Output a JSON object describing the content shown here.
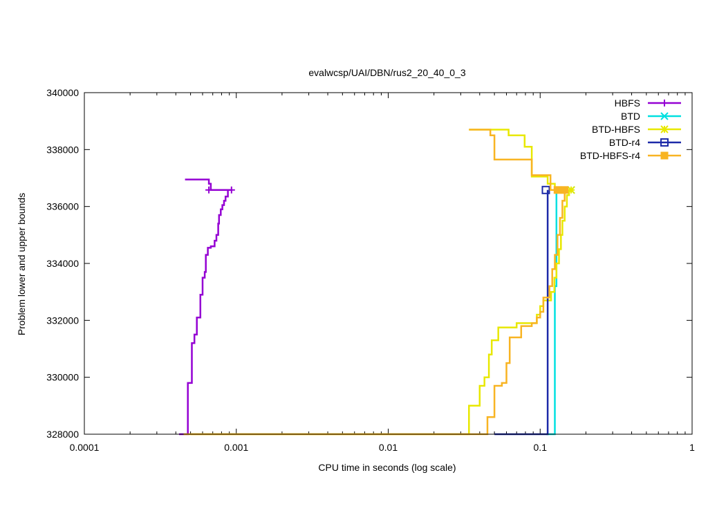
{
  "chart_data": {
    "type": "line",
    "title": "evalwcsp/UAI/DBN/rus2_20_40_0_3",
    "xlabel": "CPU time in seconds (log scale)",
    "ylabel": "Problem lower and upper bounds",
    "x_scale": "log",
    "xlim": [
      0.0001,
      1
    ],
    "ylim": [
      328000,
      340000
    ],
    "x_ticks": [
      "0.0001",
      "0.001",
      "0.01",
      "0.1",
      "1"
    ],
    "y_ticks": [
      "328000",
      "330000",
      "332000",
      "334000",
      "336000",
      "338000",
      "340000"
    ],
    "grid": false,
    "legend_position": "top-right",
    "series": [
      {
        "name": "HBFS",
        "color": "#9400d3",
        "marker": "plus",
        "upper": [
          [
            0.00046,
            336950
          ],
          [
            0.00066,
            336950
          ],
          [
            0.00066,
            336800
          ],
          [
            0.00068,
            336800
          ],
          [
            0.00068,
            336580
          ],
          [
            0.00093,
            336580
          ]
        ],
        "lower": [
          [
            0.00042,
            328000
          ],
          [
            0.00048,
            328000
          ],
          [
            0.00048,
            329800
          ],
          [
            0.00051,
            329800
          ],
          [
            0.00051,
            331200
          ],
          [
            0.00053,
            331200
          ],
          [
            0.00053,
            331500
          ],
          [
            0.00055,
            331500
          ],
          [
            0.00055,
            332100
          ],
          [
            0.00058,
            332100
          ],
          [
            0.00058,
            332900
          ],
          [
            0.0006,
            332900
          ],
          [
            0.0006,
            333500
          ],
          [
            0.00062,
            333500
          ],
          [
            0.00062,
            333700
          ],
          [
            0.00063,
            333700
          ],
          [
            0.00063,
            334300
          ],
          [
            0.00065,
            334300
          ],
          [
            0.00065,
            334550
          ],
          [
            0.00068,
            334550
          ],
          [
            0.00068,
            334600
          ],
          [
            0.00072,
            334600
          ],
          [
            0.00072,
            334800
          ],
          [
            0.00074,
            334800
          ],
          [
            0.00074,
            335000
          ],
          [
            0.00076,
            335000
          ],
          [
            0.00076,
            335400
          ],
          [
            0.00077,
            335400
          ],
          [
            0.00077,
            335700
          ],
          [
            0.00079,
            335700
          ],
          [
            0.00079,
            335900
          ],
          [
            0.00081,
            335900
          ],
          [
            0.00081,
            336050
          ],
          [
            0.00083,
            336050
          ],
          [
            0.00083,
            336200
          ],
          [
            0.00085,
            336200
          ],
          [
            0.00085,
            336350
          ],
          [
            0.00088,
            336350
          ],
          [
            0.00088,
            336580
          ],
          [
            0.00093,
            336580
          ]
        ],
        "markers": [
          [
            0.00066,
            336580
          ],
          [
            0.00093,
            336580
          ]
        ]
      },
      {
        "name": "BTD",
        "color": "#00e0e0",
        "marker": "cross",
        "upper": [],
        "lower": [
          [
            0.11,
            328000
          ],
          [
            0.125,
            328000
          ],
          [
            0.125,
            333200
          ],
          [
            0.128,
            333200
          ],
          [
            0.128,
            336580
          ],
          [
            0.16,
            336580
          ]
        ],
        "markers": [
          [
            0.16,
            336580
          ]
        ]
      },
      {
        "name": "BTD-HBFS",
        "color": "#e8e800",
        "marker": "star",
        "upper": [
          [
            0.034,
            338700
          ],
          [
            0.062,
            338700
          ],
          [
            0.062,
            338500
          ],
          [
            0.079,
            338500
          ],
          [
            0.079,
            338100
          ],
          [
            0.088,
            338100
          ],
          [
            0.088,
            337050
          ],
          [
            0.112,
            337050
          ],
          [
            0.112,
            336800
          ],
          [
            0.125,
            336800
          ],
          [
            0.125,
            336580
          ],
          [
            0.16,
            336580
          ]
        ],
        "lower": [
          [
            0.0005,
            328000
          ],
          [
            0.034,
            328000
          ],
          [
            0.034,
            329000
          ],
          [
            0.04,
            329000
          ],
          [
            0.04,
            329700
          ],
          [
            0.043,
            329700
          ],
          [
            0.043,
            330000
          ],
          [
            0.046,
            330000
          ],
          [
            0.046,
            330800
          ],
          [
            0.048,
            330800
          ],
          [
            0.048,
            331300
          ],
          [
            0.053,
            331300
          ],
          [
            0.053,
            331750
          ],
          [
            0.07,
            331750
          ],
          [
            0.07,
            331900
          ],
          [
            0.095,
            331900
          ],
          [
            0.095,
            332200
          ],
          [
            0.1,
            332200
          ],
          [
            0.1,
            332500
          ],
          [
            0.105,
            332500
          ],
          [
            0.105,
            332700
          ],
          [
            0.118,
            332700
          ],
          [
            0.118,
            333000
          ],
          [
            0.124,
            333000
          ],
          [
            0.124,
            333500
          ],
          [
            0.128,
            333500
          ],
          [
            0.128,
            334000
          ],
          [
            0.133,
            334000
          ],
          [
            0.133,
            334500
          ],
          [
            0.137,
            334500
          ],
          [
            0.137,
            335000
          ],
          [
            0.14,
            335000
          ],
          [
            0.14,
            335500
          ],
          [
            0.145,
            335500
          ],
          [
            0.145,
            336000
          ],
          [
            0.15,
            336000
          ],
          [
            0.15,
            336400
          ],
          [
            0.155,
            336400
          ],
          [
            0.155,
            336580
          ],
          [
            0.16,
            336580
          ]
        ],
        "markers": [
          [
            0.16,
            336580
          ]
        ]
      },
      {
        "name": "BTD-r4",
        "color": "#1c2aa8",
        "marker": "open-square",
        "upper": [],
        "lower": [
          [
            0.05,
            328000
          ],
          [
            0.112,
            328000
          ],
          [
            0.112,
            336580
          ],
          [
            0.112,
            336580
          ]
        ],
        "markers": [
          [
            0.109,
            336580
          ]
        ]
      },
      {
        "name": "BTD-HBFS-r4",
        "color": "#f8b422",
        "marker": "filled-square",
        "upper": [
          [
            0.034,
            338700
          ],
          [
            0.047,
            338700
          ],
          [
            0.047,
            338500
          ],
          [
            0.05,
            338500
          ],
          [
            0.05,
            337650
          ],
          [
            0.088,
            337650
          ],
          [
            0.088,
            337100
          ],
          [
            0.117,
            337100
          ],
          [
            0.117,
            336580
          ],
          [
            0.15,
            336580
          ]
        ],
        "lower": [
          [
            0.00045,
            328000
          ],
          [
            0.045,
            328000
          ],
          [
            0.045,
            328600
          ],
          [
            0.05,
            328600
          ],
          [
            0.05,
            329700
          ],
          [
            0.056,
            329700
          ],
          [
            0.056,
            329800
          ],
          [
            0.06,
            329800
          ],
          [
            0.06,
            330500
          ],
          [
            0.063,
            330500
          ],
          [
            0.063,
            331400
          ],
          [
            0.075,
            331400
          ],
          [
            0.075,
            331800
          ],
          [
            0.088,
            331800
          ],
          [
            0.088,
            331900
          ],
          [
            0.095,
            331900
          ],
          [
            0.095,
            332100
          ],
          [
            0.1,
            332100
          ],
          [
            0.1,
            332300
          ],
          [
            0.105,
            332300
          ],
          [
            0.105,
            332800
          ],
          [
            0.115,
            332800
          ],
          [
            0.115,
            333200
          ],
          [
            0.12,
            333200
          ],
          [
            0.12,
            333800
          ],
          [
            0.125,
            333800
          ],
          [
            0.125,
            334300
          ],
          [
            0.13,
            334300
          ],
          [
            0.13,
            335000
          ],
          [
            0.135,
            335000
          ],
          [
            0.135,
            335600
          ],
          [
            0.14,
            335600
          ],
          [
            0.14,
            336200
          ],
          [
            0.145,
            336200
          ],
          [
            0.145,
            336580
          ],
          [
            0.15,
            336580
          ]
        ],
        "markers": [
          [
            0.13,
            336580
          ],
          [
            0.145,
            336580
          ]
        ]
      }
    ]
  }
}
